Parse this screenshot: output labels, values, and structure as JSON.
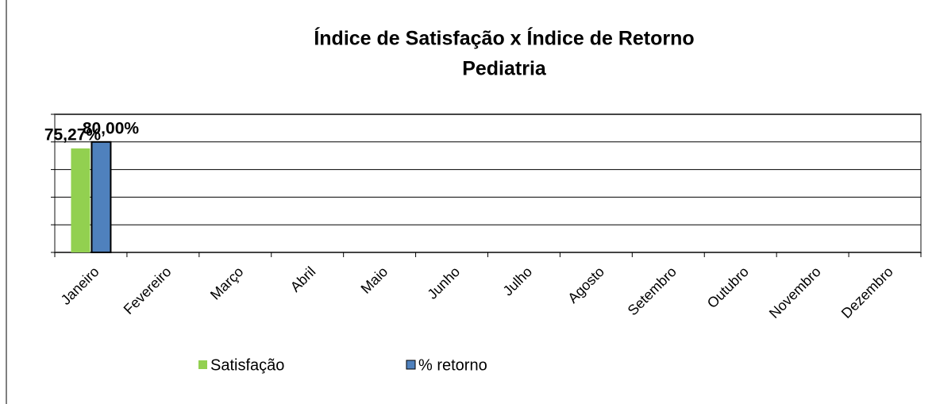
{
  "chart_data": {
    "type": "bar",
    "title": "Índice de Satisfação x Índice de Retorno",
    "subtitle": "Pediatria",
    "categories": [
      "Janeiro",
      "Fevereiro",
      "Março",
      "Abril",
      "Maio",
      "Junho",
      "Julho",
      "Agosto",
      "Setembro",
      "Outubro",
      "Novembro",
      "Dezembro"
    ],
    "series": [
      {
        "name": "Satisfação",
        "color": "#92d050",
        "values": [
          75.27,
          null,
          null,
          null,
          null,
          null,
          null,
          null,
          null,
          null,
          null,
          null
        ],
        "value_labels": [
          "75,27%",
          null,
          null,
          null,
          null,
          null,
          null,
          null,
          null,
          null,
          null,
          null
        ]
      },
      {
        "name": "% retorno",
        "color": "#4f81bd",
        "values": [
          80,
          null,
          null,
          null,
          null,
          null,
          null,
          null,
          null,
          null,
          null,
          null
        ],
        "value_labels": [
          "80,00%",
          null,
          null,
          null,
          null,
          null,
          null,
          null,
          null,
          null,
          null,
          null
        ]
      }
    ],
    "ylim": [
      0,
      100
    ],
    "yticks": [
      0,
      20,
      40,
      60,
      80,
      100
    ],
    "grid": true,
    "legend": "bottom"
  }
}
